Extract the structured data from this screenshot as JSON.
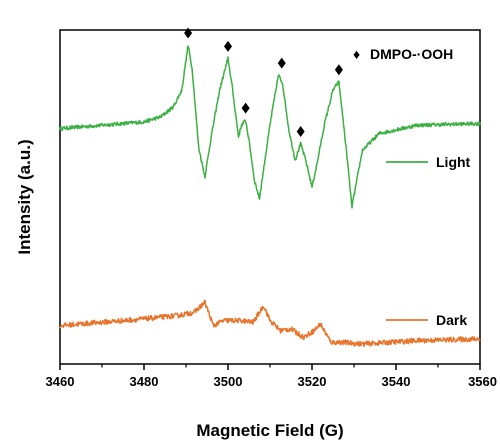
{
  "chart_data": {
    "type": "line",
    "xlabel": "Magnetic Field (G)",
    "ylabel": "Intensity (a.u.)",
    "xlim": [
      3460,
      3560
    ],
    "ylim": [
      0,
      100
    ],
    "x_ticks": [
      "3460",
      "3480",
      "3500",
      "3520",
      "3540",
      "3560"
    ],
    "y_ticks_shown": false,
    "grid": false,
    "annotation": {
      "symbol": "♦",
      "label": "DMPO-·OOH",
      "placement": "top-right"
    },
    "series": [
      {
        "name": "Light",
        "color": "#3cb043",
        "x": [
          3460,
          3470,
          3480,
          3484,
          3487,
          3489,
          3490.5,
          3491.5,
          3493,
          3494.5,
          3496,
          3498,
          3500,
          3501,
          3502.5,
          3503.2,
          3504.2,
          3505,
          3506.3,
          3507.5,
          3509,
          3510.3,
          3512,
          3513,
          3514.5,
          3516,
          3517.3,
          3518.5,
          3520,
          3521.2,
          3523,
          3525,
          3526.4,
          3527.5,
          3528.5,
          3529.5,
          3532,
          3536,
          3545,
          3560
        ],
        "y": [
          70.5,
          71.5,
          72.5,
          74,
          77,
          82,
          95.5,
          88,
          65,
          56,
          68,
          82,
          91.5,
          83,
          68,
          71.5,
          73,
          67,
          55,
          49.5,
          63,
          74,
          86.5,
          84,
          70,
          61,
          66,
          61,
          53,
          60,
          72,
          82,
          84.5,
          72,
          60,
          47,
          64,
          69,
          71.5,
          72
        ]
      },
      {
        "name": "Dark",
        "color": "#e8732a",
        "x": [
          3460,
          3470,
          3480,
          3488,
          3492,
          3494.5,
          3496.5,
          3499,
          3503,
          3506,
          3508.5,
          3510,
          3512.5,
          3515,
          3518,
          3520.5,
          3522,
          3524.5,
          3527,
          3532,
          3545,
          3560
        ],
        "y": [
          11.5,
          12.5,
          13.5,
          14.5,
          15.5,
          18.5,
          11.5,
          13,
          13,
          12.5,
          17.5,
          13,
          10,
          10.5,
          8,
          10,
          12,
          6.5,
          6.5,
          6,
          7,
          7.5
        ]
      }
    ],
    "markers": [
      {
        "x": 3490.5,
        "y": 95.5
      },
      {
        "x": 3500,
        "y": 91.5
      },
      {
        "x": 3504.2,
        "y": 73
      },
      {
        "x": 3512.8,
        "y": 86.5
      },
      {
        "x": 3517.3,
        "y": 66
      },
      {
        "x": 3526.4,
        "y": 84.5
      }
    ]
  }
}
